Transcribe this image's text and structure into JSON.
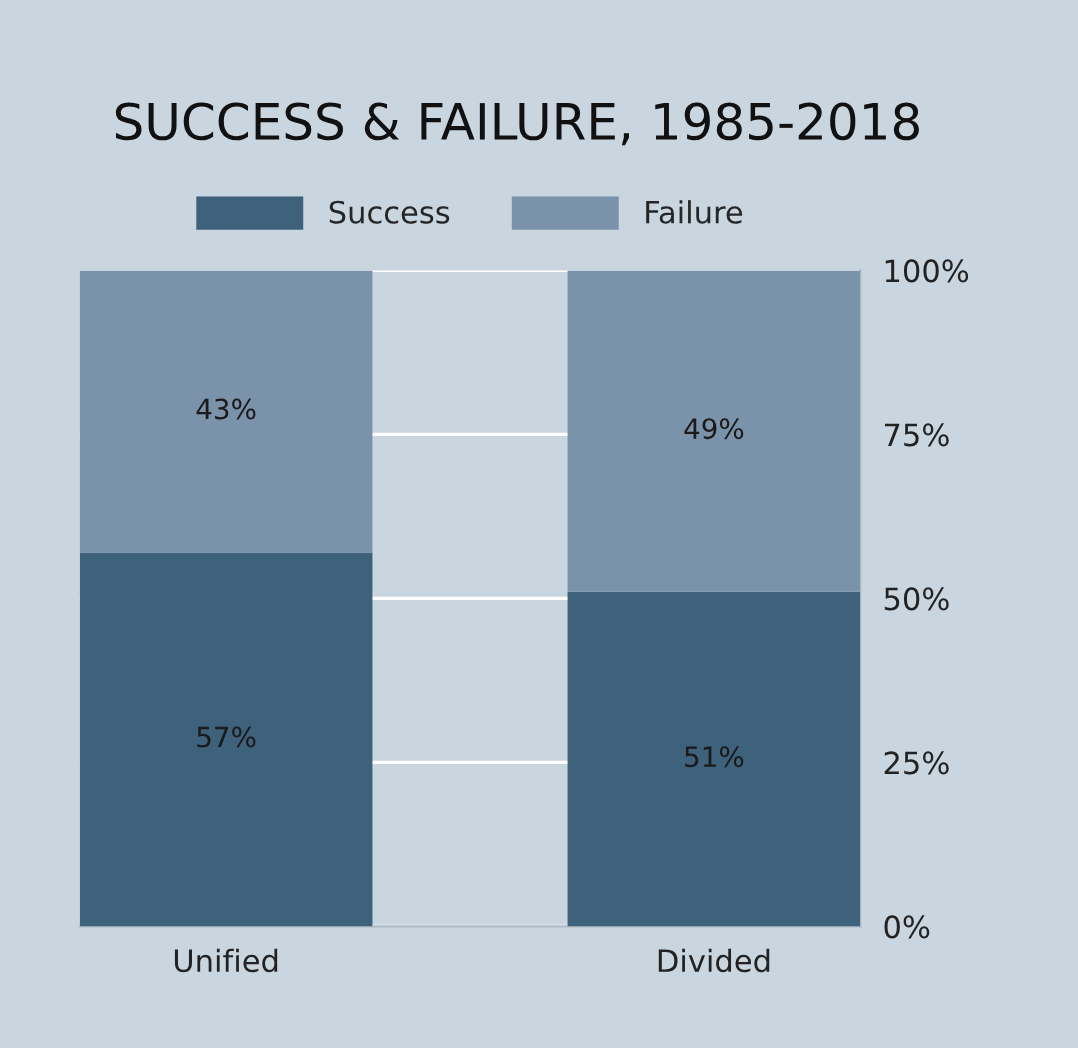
{
  "chart_data": {
    "type": "bar",
    "title": "SUCCESS & FAILURE, 1985-2018",
    "categories": [
      "Unified",
      "Divided"
    ],
    "stacked": true,
    "series": [
      {
        "name": "Success",
        "color": "#3e617c",
        "values": [
          57,
          51
        ],
        "value_labels": [
          "57%",
          "51%"
        ]
      },
      {
        "name": "Failure",
        "color": "#7b93aa",
        "values": [
          43,
          49
        ],
        "value_labels": [
          "43%",
          "49%"
        ]
      }
    ],
    "ylim": [
      0,
      100
    ],
    "yticks": [
      {
        "value": 0,
        "label": "0%"
      },
      {
        "value": 25,
        "label": "25%"
      },
      {
        "value": 50,
        "label": "50%"
      },
      {
        "value": 75,
        "label": "75%"
      },
      {
        "value": 100,
        "label": "100%"
      }
    ],
    "grid": "y",
    "legend": "top"
  }
}
